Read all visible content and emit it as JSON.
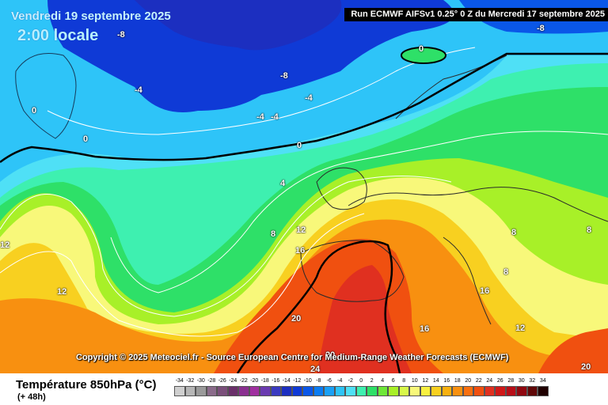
{
  "header": {
    "date": "Vendredi 19 septembre 2025",
    "time": "2:00 locale",
    "run": "Run ECMWF AIFSv1 0.25° 0 Z du Mercredi 17 septembre 2025"
  },
  "copyright": "Copyright © 2025 Meteociel.fr - Source European Centre for Medium-Range Weather Forecasts (ECMWF)",
  "footer": {
    "variable": "Température 850hPa (°C)",
    "lead_time": "(+ 48h)"
  },
  "colorscale": {
    "labels": [
      "-34",
      "-32",
      "-30",
      "-28",
      "-26",
      "-24",
      "-22",
      "-20",
      "-18",
      "-16",
      "-14",
      "-12",
      "-10",
      "-8",
      "-6",
      "-4",
      "-2",
      "0",
      "2",
      "4",
      "6",
      "8",
      "10",
      "12",
      "14",
      "16",
      "18",
      "20",
      "22",
      "24",
      "26",
      "28",
      "30",
      "32",
      "34"
    ],
    "colors": [
      "#cfcfcf",
      "#b6b6b6",
      "#9a9a9a",
      "#8a6b8a",
      "#7a4f7a",
      "#6a306a",
      "#8a3090",
      "#a030a0",
      "#6a3ab0",
      "#3a3ac0",
      "#1c2fc0",
      "#0f3ad6",
      "#0a57e8",
      "#0b7cf2",
      "#1aa0f6",
      "#2ec4f8",
      "#4fe0f6",
      "#3ef0b0",
      "#2ee068",
      "#6ee838",
      "#a8f028",
      "#d8f84a",
      "#f8f87a",
      "#f8f040",
      "#f8d020",
      "#f8b010",
      "#f89010",
      "#f87010",
      "#f05010",
      "#e03020",
      "#d01818",
      "#b80e18",
      "#900810",
      "#600808",
      "#200000"
    ]
  },
  "isolines": [
    {
      "label": "-8",
      "kind": "isotherm"
    },
    {
      "label": "-8",
      "kind": "isotherm"
    },
    {
      "label": "-8",
      "kind": "isotherm"
    },
    {
      "label": "0",
      "kind": "isotherm"
    },
    {
      "label": "-4",
      "kind": "isotherm"
    },
    {
      "label": "-4",
      "kind": "isotherm"
    },
    {
      "label": "-4",
      "kind": "isotherm"
    },
    {
      "label": "-4",
      "kind": "isotherm"
    },
    {
      "label": "0",
      "kind": "isotherm"
    },
    {
      "label": "0",
      "kind": "isotherm"
    },
    {
      "label": "0",
      "kind": "isotherm"
    },
    {
      "label": "4",
      "kind": "isotherm"
    },
    {
      "label": "8",
      "kind": "isotherm"
    },
    {
      "label": "12",
      "kind": "isotherm"
    },
    {
      "label": "16",
      "kind": "isotherm"
    },
    {
      "label": "12",
      "kind": "isotherm"
    },
    {
      "label": "12",
      "kind": "isotherm"
    },
    {
      "label": "20",
      "kind": "isotherm"
    },
    {
      "label": "20",
      "kind": "isotherm"
    },
    {
      "label": "24",
      "kind": "isotherm"
    },
    {
      "label": "16",
      "kind": "isotherm"
    },
    {
      "label": "16",
      "kind": "isotherm"
    },
    {
      "label": "12",
      "kind": "isotherm"
    },
    {
      "label": "8",
      "kind": "isotherm"
    },
    {
      "label": "8",
      "kind": "isotherm"
    },
    {
      "label": "8",
      "kind": "isotherm"
    },
    {
      "label": "20",
      "kind": "isotherm"
    }
  ]
}
